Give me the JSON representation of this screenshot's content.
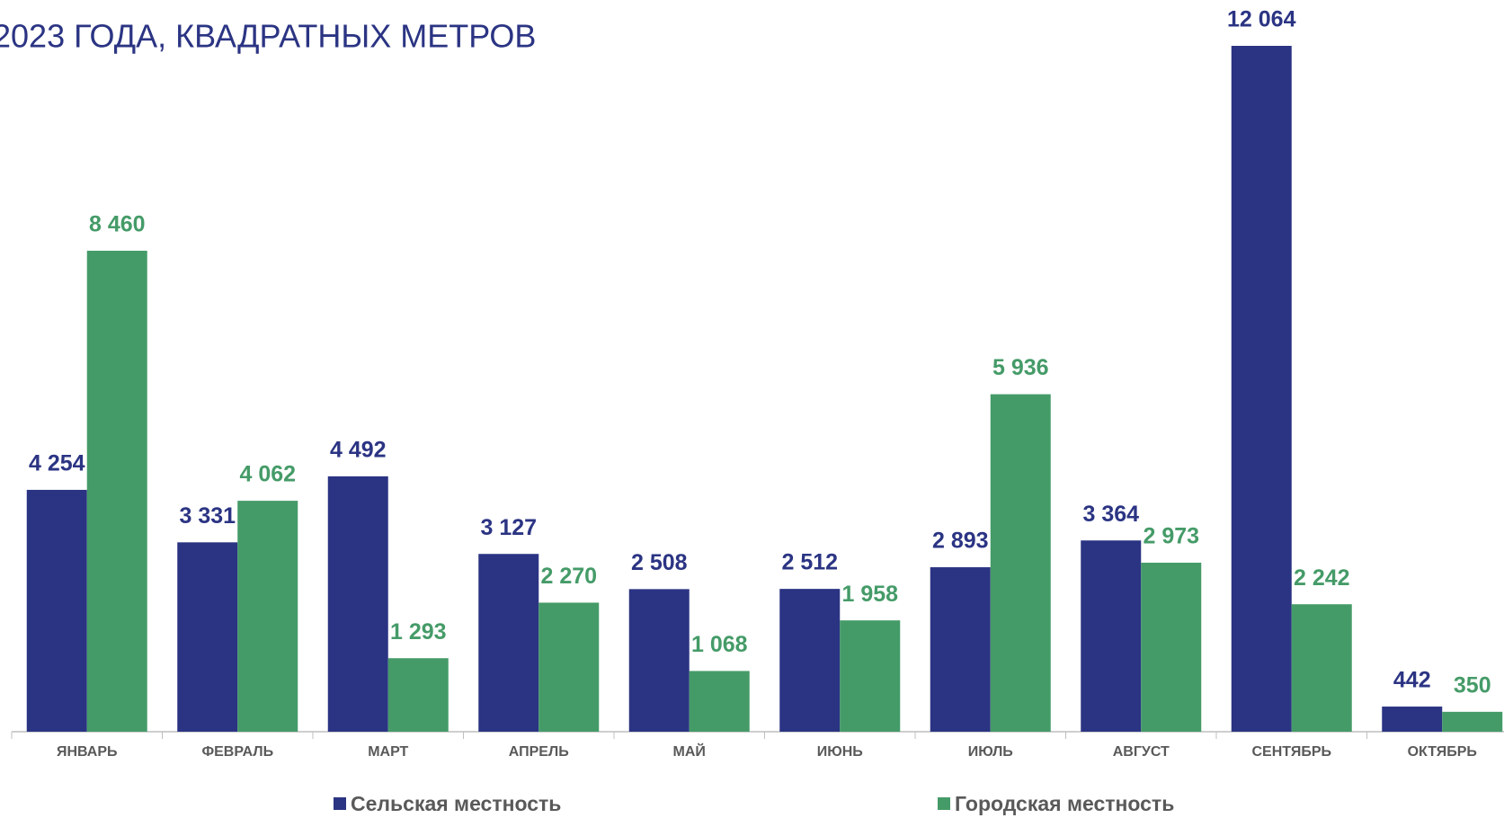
{
  "chart_data": {
    "type": "bar",
    "title": "2023 ГОДА, КВАДРАТНЫХ МЕТРОВ",
    "categories": [
      "ЯНВАРЬ",
      "ФЕВРАЛЬ",
      "МАРТ",
      "АПРЕЛЬ",
      "МАЙ",
      "ИЮНЬ",
      "ИЮЛЬ",
      "АВГУСТ",
      "СЕНТЯБРЬ",
      "ОКТЯБРЬ"
    ],
    "series": [
      {
        "name": "Сельская местность",
        "color": "#2b3483",
        "values": [
          4254,
          3331,
          4492,
          3127,
          2508,
          2512,
          2893,
          3364,
          12064,
          442
        ],
        "value_labels": [
          "4 254",
          "3 331",
          "4 492",
          "3 127",
          "2 508",
          "2 512",
          "2 893",
          "3 364",
          "12 064",
          "442"
        ]
      },
      {
        "name": "Городская местность",
        "color": "#459b68",
        "values": [
          8460,
          4062,
          1293,
          2270,
          1068,
          1958,
          5936,
          2973,
          2242,
          350
        ],
        "value_labels": [
          "8 460",
          "4 062",
          "1 293",
          "2 270",
          "1 068",
          "1 958",
          "5 936",
          "2 973",
          "2 242",
          "350"
        ]
      }
    ]
  }
}
